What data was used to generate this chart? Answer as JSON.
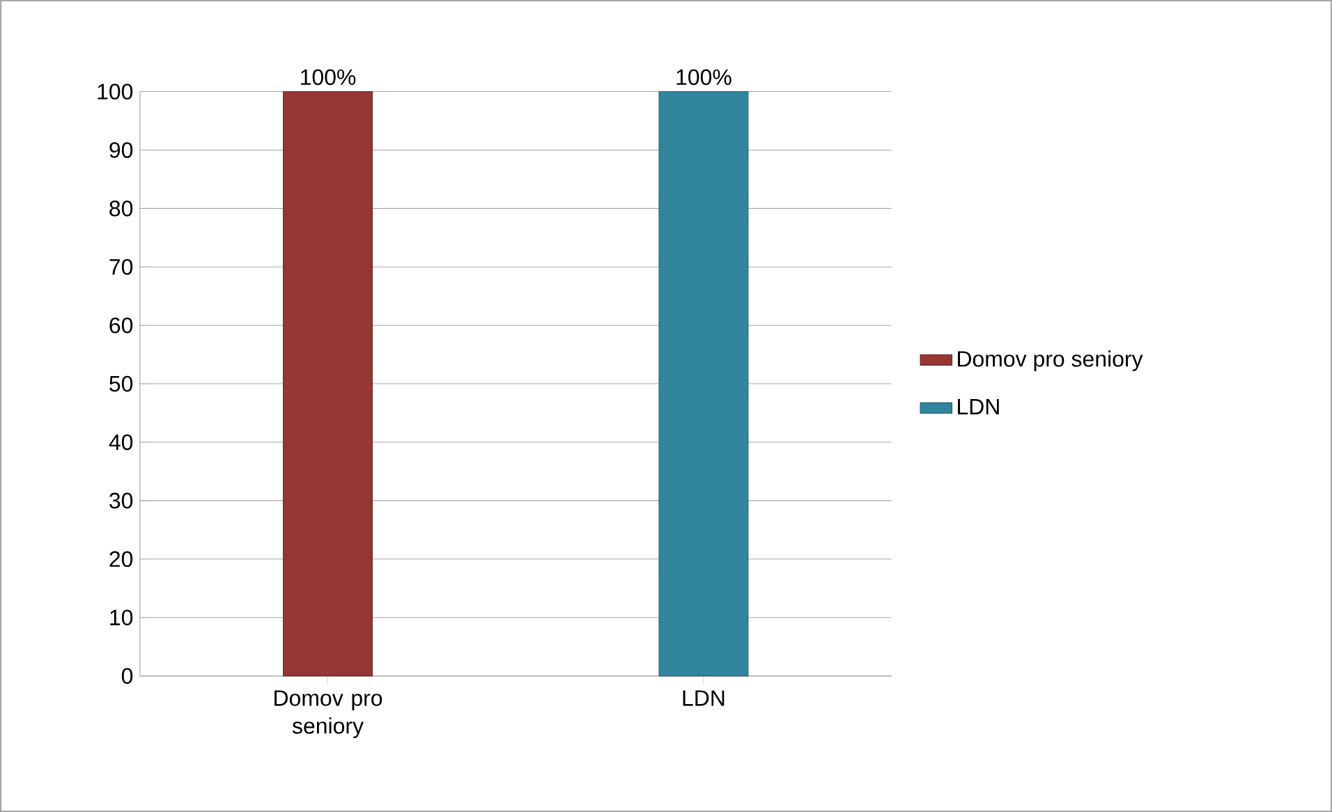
{
  "chart_data": {
    "type": "bar",
    "categories": [
      "Domov pro seniory",
      "LDN"
    ],
    "series": [
      {
        "name": "Domov pro seniory",
        "color": "#953735",
        "values": [
          100,
          null
        ],
        "value_labels": [
          "100%",
          null
        ]
      },
      {
        "name": "LDN",
        "color": "#31859c",
        "values": [
          null,
          100
        ],
        "value_labels": [
          null,
          "100%"
        ]
      }
    ],
    "ylim": [
      0,
      100
    ],
    "yticks": [
      0,
      10,
      20,
      30,
      40,
      50,
      60,
      70,
      80,
      90,
      100
    ],
    "grid": "y",
    "legend": "right"
  }
}
